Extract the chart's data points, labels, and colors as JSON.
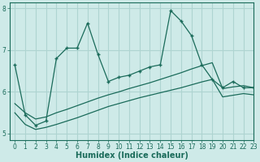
{
  "title": "",
  "xlabel": "Humidex (Indice chaleur)",
  "ylabel": "",
  "bg_color": "#ceeae8",
  "grid_color": "#aed4d1",
  "line_color": "#1a6b5a",
  "xlim": [
    -0.5,
    23
  ],
  "ylim": [
    4.85,
    8.15
  ],
  "yticks": [
    5,
    6,
    7,
    8
  ],
  "xticks": [
    0,
    1,
    2,
    3,
    4,
    5,
    6,
    7,
    8,
    9,
    10,
    11,
    12,
    13,
    14,
    15,
    16,
    17,
    18,
    19,
    20,
    21,
    22,
    23
  ],
  "main_x": [
    0,
    1,
    2,
    3,
    4,
    5,
    6,
    7,
    8,
    9,
    10,
    11,
    12,
    13,
    14,
    15,
    16,
    17,
    18,
    19,
    20,
    21,
    22,
    23
  ],
  "main_y": [
    6.65,
    5.45,
    5.2,
    5.3,
    6.8,
    7.05,
    7.05,
    7.65,
    6.9,
    6.25,
    6.35,
    6.4,
    6.5,
    6.6,
    6.65,
    7.95,
    7.7,
    7.35,
    6.65,
    6.3,
    6.1,
    6.25,
    6.1,
    6.1
  ],
  "upper_x": [
    0,
    1,
    2,
    3,
    4,
    5,
    6,
    7,
    8,
    9,
    10,
    11,
    12,
    13,
    14,
    15,
    16,
    17,
    18,
    19,
    20,
    21,
    22,
    23
  ],
  "upper_y": [
    5.72,
    5.5,
    5.35,
    5.4,
    5.5,
    5.58,
    5.67,
    5.76,
    5.85,
    5.93,
    6.0,
    6.08,
    6.15,
    6.22,
    6.3,
    6.38,
    6.46,
    6.55,
    6.63,
    6.7,
    6.08,
    6.12,
    6.15,
    6.1
  ],
  "lower_x": [
    0,
    1,
    2,
    3,
    4,
    5,
    6,
    7,
    8,
    9,
    10,
    11,
    12,
    13,
    14,
    15,
    16,
    17,
    18,
    19,
    20,
    21,
    22,
    23
  ],
  "lower_y": [
    5.5,
    5.22,
    5.1,
    5.15,
    5.22,
    5.3,
    5.38,
    5.47,
    5.56,
    5.65,
    5.72,
    5.79,
    5.86,
    5.92,
    5.98,
    6.04,
    6.1,
    6.17,
    6.24,
    6.3,
    5.88,
    5.92,
    5.96,
    5.93
  ]
}
